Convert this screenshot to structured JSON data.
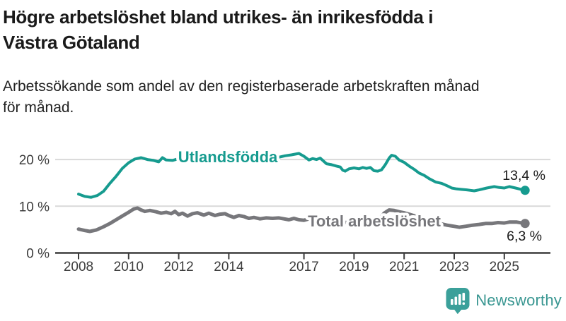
{
  "header": {
    "title": "Högre arbetslöshet bland utrikes- än inrikesfödda i\nVästra Götaland",
    "subtitle": "Arbetssökande som andel av den registerbaserade arbetskraften månad\nför månad."
  },
  "footer": {
    "brand": "Newsworthy",
    "logo_icon": "bar-chart-speech-bubble-icon"
  },
  "colors": {
    "accent_teal": "#169b8f",
    "series_gray": "#77777b",
    "axis_text": "#3c3c3c",
    "gridline": "#d9d9d9",
    "value_label_text": "#1a1a1a",
    "logo_teal": "#3ba09a"
  },
  "chart_data": {
    "type": "line",
    "title": "Högre arbetslöshet bland utrikes- än inrikesfödda i Västra Götaland",
    "subtitle": "Arbetssökande som andel av den registerbaserade arbetskraften månad för månad.",
    "unit": "%",
    "grid": "horizontal-only",
    "legend_position": "inline-labels",
    "x_axis": {
      "tick_years": [
        2008,
        2010,
        2012,
        2014,
        2017,
        2019,
        2021,
        2023,
        2025
      ],
      "range": [
        2007.8,
        2026.3
      ]
    },
    "y_axis": {
      "ticks": [
        {
          "value": 0,
          "label": "0 %"
        },
        {
          "value": 10,
          "label": "10 %"
        },
        {
          "value": 20,
          "label": "20 %"
        }
      ],
      "range": [
        0,
        22
      ]
    },
    "series": [
      {
        "name": "Utlandsfödda",
        "color": "#169b8f",
        "end_value": 13.4,
        "end_label": "13,4 %",
        "points": [
          [
            2008.0,
            12.6
          ],
          [
            2008.25,
            12.1
          ],
          [
            2008.5,
            11.9
          ],
          [
            2008.75,
            12.3
          ],
          [
            2009.0,
            13.2
          ],
          [
            2009.25,
            14.9
          ],
          [
            2009.5,
            16.4
          ],
          [
            2009.75,
            18.1
          ],
          [
            2010.0,
            19.3
          ],
          [
            2010.25,
            20.1
          ],
          [
            2010.5,
            20.4
          ],
          [
            2010.75,
            20.0
          ],
          [
            2011.0,
            19.8
          ],
          [
            2011.2,
            19.5
          ],
          [
            2011.35,
            20.4
          ],
          [
            2011.5,
            19.9
          ],
          [
            2011.75,
            19.8
          ],
          [
            2012.0,
            20.2
          ],
          [
            2012.25,
            20.5
          ],
          [
            2012.5,
            20.3
          ],
          [
            2012.75,
            20.4
          ],
          [
            2013.0,
            20.7
          ],
          [
            2013.25,
            20.9
          ],
          [
            2013.5,
            20.6
          ],
          [
            2013.75,
            20.5
          ],
          [
            2014.0,
            20.7
          ],
          [
            2014.25,
            20.9
          ],
          [
            2014.5,
            20.6
          ],
          [
            2014.75,
            20.4
          ],
          [
            2015.0,
            20.6
          ],
          [
            2015.25,
            20.8
          ],
          [
            2015.5,
            20.5
          ],
          [
            2015.75,
            20.4
          ],
          [
            2016.0,
            20.5
          ],
          [
            2016.25,
            20.8
          ],
          [
            2016.5,
            21.0
          ],
          [
            2016.8,
            21.3
          ],
          [
            2017.0,
            20.7
          ],
          [
            2017.1,
            20.3
          ],
          [
            2017.2,
            19.9
          ],
          [
            2017.35,
            20.2
          ],
          [
            2017.5,
            20.0
          ],
          [
            2017.65,
            20.3
          ],
          [
            2017.9,
            19.1
          ],
          [
            2018.1,
            18.9
          ],
          [
            2018.3,
            18.6
          ],
          [
            2018.45,
            18.4
          ],
          [
            2018.55,
            17.7
          ],
          [
            2018.65,
            17.5
          ],
          [
            2018.8,
            18.0
          ],
          [
            2019.0,
            18.2
          ],
          [
            2019.2,
            18.0
          ],
          [
            2019.35,
            18.3
          ],
          [
            2019.5,
            18.1
          ],
          [
            2019.65,
            18.3
          ],
          [
            2019.8,
            17.6
          ],
          [
            2019.95,
            17.5
          ],
          [
            2020.1,
            17.8
          ],
          [
            2020.25,
            18.9
          ],
          [
            2020.4,
            20.3
          ],
          [
            2020.5,
            20.9
          ],
          [
            2020.65,
            20.7
          ],
          [
            2020.8,
            19.9
          ],
          [
            2021.0,
            19.4
          ],
          [
            2021.2,
            18.6
          ],
          [
            2021.4,
            17.9
          ],
          [
            2021.6,
            17.1
          ],
          [
            2021.8,
            16.6
          ],
          [
            2022.0,
            15.9
          ],
          [
            2022.25,
            15.2
          ],
          [
            2022.5,
            14.9
          ],
          [
            2022.75,
            14.3
          ],
          [
            2022.9,
            13.9
          ],
          [
            2023.1,
            13.7
          ],
          [
            2023.3,
            13.6
          ],
          [
            2023.5,
            13.5
          ],
          [
            2023.65,
            13.4
          ],
          [
            2023.8,
            13.3
          ],
          [
            2024.0,
            13.5
          ],
          [
            2024.3,
            13.9
          ],
          [
            2024.6,
            14.2
          ],
          [
            2024.8,
            14.0
          ],
          [
            2025.0,
            13.9
          ],
          [
            2025.2,
            14.2
          ],
          [
            2025.45,
            13.9
          ],
          [
            2025.6,
            13.7
          ],
          [
            2025.83,
            13.4
          ]
        ]
      },
      {
        "name": "Total arbetslöshet",
        "color": "#77777b",
        "end_value": 6.3,
        "end_label": "6,3 %",
        "points": [
          [
            2008.0,
            5.1
          ],
          [
            2008.25,
            4.8
          ],
          [
            2008.45,
            4.6
          ],
          [
            2008.7,
            4.9
          ],
          [
            2009.0,
            5.6
          ],
          [
            2009.25,
            6.3
          ],
          [
            2009.5,
            7.1
          ],
          [
            2009.75,
            7.9
          ],
          [
            2010.0,
            8.7
          ],
          [
            2010.2,
            9.4
          ],
          [
            2010.35,
            9.6
          ],
          [
            2010.5,
            9.2
          ],
          [
            2010.65,
            8.9
          ],
          [
            2010.85,
            9.1
          ],
          [
            2011.1,
            8.8
          ],
          [
            2011.3,
            8.5
          ],
          [
            2011.5,
            8.7
          ],
          [
            2011.7,
            8.4
          ],
          [
            2011.85,
            8.9
          ],
          [
            2012.0,
            8.2
          ],
          [
            2012.15,
            8.5
          ],
          [
            2012.35,
            7.9
          ],
          [
            2012.55,
            8.4
          ],
          [
            2012.75,
            8.6
          ],
          [
            2013.0,
            8.1
          ],
          [
            2013.2,
            8.5
          ],
          [
            2013.45,
            8.0
          ],
          [
            2013.65,
            8.3
          ],
          [
            2013.85,
            8.4
          ],
          [
            2014.0,
            8.0
          ],
          [
            2014.2,
            7.6
          ],
          [
            2014.4,
            8.0
          ],
          [
            2014.6,
            7.8
          ],
          [
            2014.8,
            7.4
          ],
          [
            2015.0,
            7.6
          ],
          [
            2015.25,
            7.3
          ],
          [
            2015.5,
            7.5
          ],
          [
            2015.75,
            7.4
          ],
          [
            2016.0,
            7.5
          ],
          [
            2016.2,
            7.3
          ],
          [
            2016.4,
            7.1
          ],
          [
            2016.6,
            7.4
          ],
          [
            2016.8,
            7.1
          ],
          [
            2017.0,
            7.0
          ],
          [
            2017.2,
            7.3
          ],
          [
            2017.4,
            7.0
          ],
          [
            2017.6,
            6.8
          ],
          [
            2017.8,
            6.9
          ],
          [
            2018.0,
            6.7
          ],
          [
            2018.25,
            6.5
          ],
          [
            2018.5,
            6.4
          ],
          [
            2018.75,
            6.6
          ],
          [
            2019.0,
            6.5
          ],
          [
            2019.25,
            6.6
          ],
          [
            2019.5,
            6.8
          ],
          [
            2019.75,
            6.9
          ],
          [
            2020.0,
            7.2
          ],
          [
            2020.2,
            8.5
          ],
          [
            2020.4,
            9.2
          ],
          [
            2020.6,
            9.1
          ],
          [
            2020.8,
            8.8
          ],
          [
            2021.0,
            8.6
          ],
          [
            2021.25,
            8.2
          ],
          [
            2021.5,
            7.8
          ],
          [
            2021.75,
            7.3
          ],
          [
            2022.0,
            7.0
          ],
          [
            2022.25,
            6.6
          ],
          [
            2022.5,
            6.2
          ],
          [
            2022.75,
            5.9
          ],
          [
            2023.0,
            5.7
          ],
          [
            2023.2,
            5.5
          ],
          [
            2023.45,
            5.7
          ],
          [
            2023.7,
            5.9
          ],
          [
            2024.0,
            6.1
          ],
          [
            2024.25,
            6.3
          ],
          [
            2024.5,
            6.3
          ],
          [
            2024.75,
            6.5
          ],
          [
            2025.0,
            6.4
          ],
          [
            2025.2,
            6.6
          ],
          [
            2025.5,
            6.6
          ],
          [
            2025.83,
            6.3
          ]
        ]
      }
    ]
  }
}
